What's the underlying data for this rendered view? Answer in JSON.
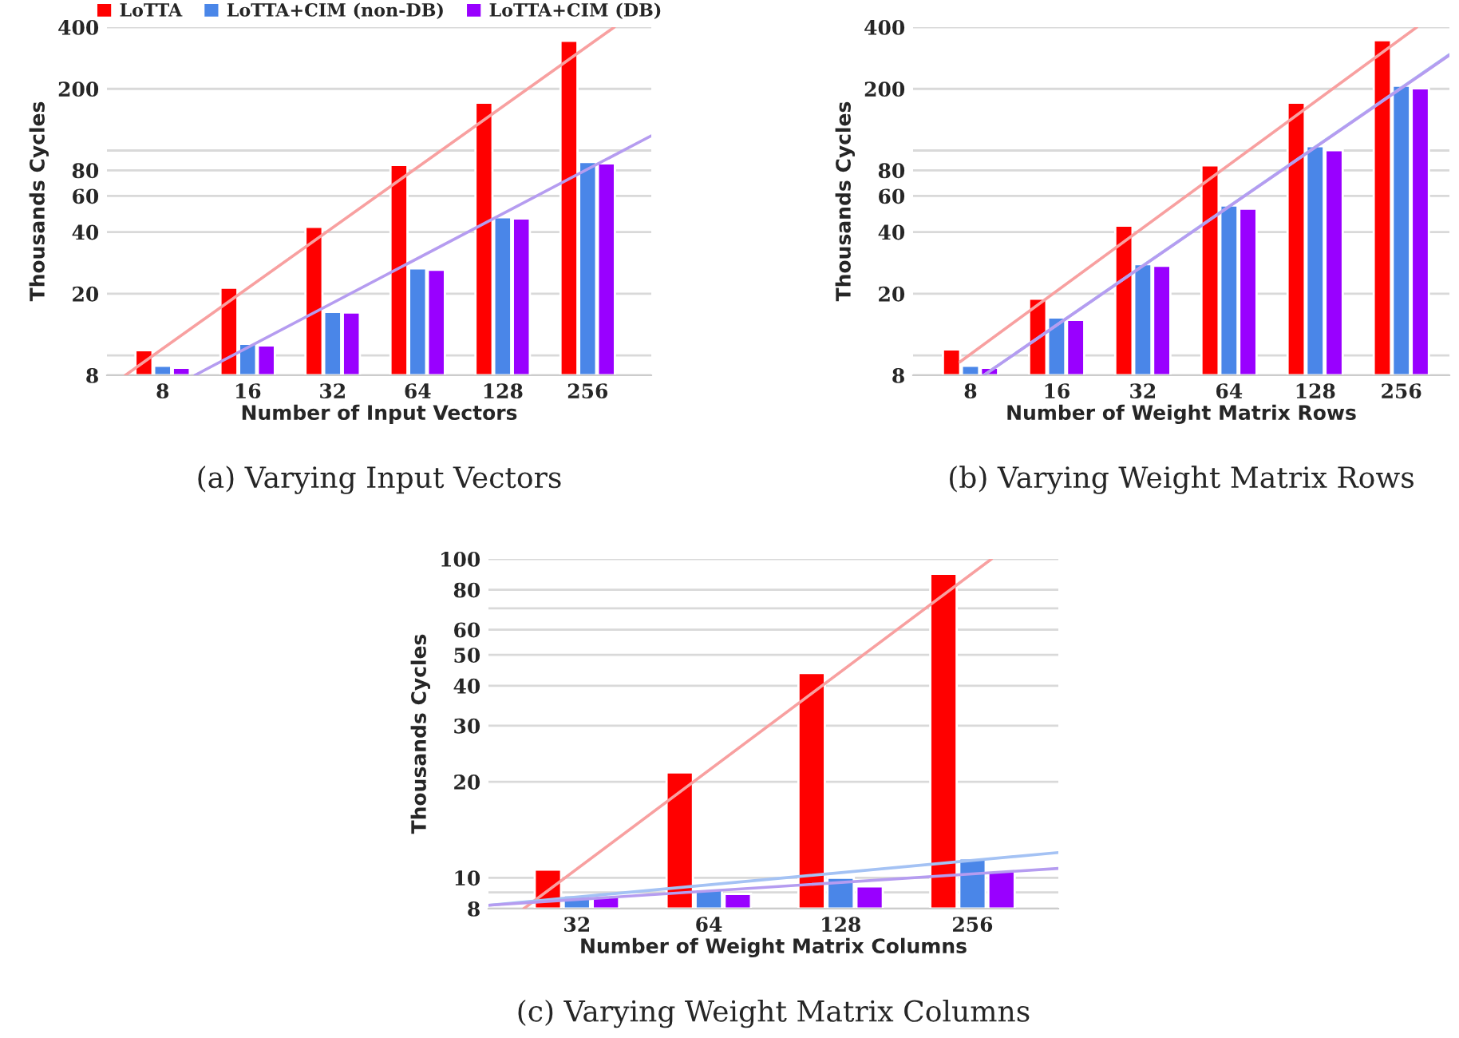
{
  "chart_data": [
    {
      "type": "bar",
      "xlabel": "Number of Input Vectors",
      "ylabel": "Thousands Cycles",
      "log": "xy",
      "grid": "y",
      "legend": "top",
      "x": [
        8,
        16,
        32,
        64,
        128,
        256
      ],
      "xlim": [
        5.08,
        430
      ],
      "xticks": [
        8,
        16,
        32,
        64,
        128,
        256
      ],
      "ylim": [
        8,
        400
      ],
      "yticks": [
        8,
        {
          "value": 10,
          "label": null
        },
        20,
        40,
        60,
        80,
        {
          "value": 100,
          "label": null
        },
        200,
        400
      ],
      "annotations": [
        "(a) Varying Input Vectors"
      ],
      "series": [
        {
          "name": "LoTTA",
          "color": "#ff0000",
          "values": [
            10.6,
            21.4,
            42.4,
            85,
            171,
            343
          ]
        },
        {
          "name": "LoTTA+CIM (non-DB)",
          "color": "#4a86e8",
          "values": [
            8.9,
            11.4,
            16.3,
            26.6,
            47.2,
            88
          ]
        },
        {
          "name": "LoTTA+CIM (DB)",
          "color": "#9900ff",
          "values": [
            8.7,
            11.2,
            16.2,
            26.2,
            46.6,
            86.6
          ]
        },
        {
          "type": "line",
          "color": "#f8a0a0",
          "x": [
            5.9,
            318
          ],
          "values": [
            8,
            400
          ]
        },
        {
          "type": "line",
          "color": "#b59cf0",
          "x": [
            10.4,
            430
          ],
          "values": [
            8,
            118
          ]
        }
      ]
    },
    {
      "type": "bar",
      "xlabel": "Number of Weight Matrix Rows",
      "ylabel": "Thousands Cycles",
      "log": "xy",
      "grid": "y",
      "x": [
        8,
        16,
        32,
        64,
        128,
        256
      ],
      "xlim": [
        5.04,
        377
      ],
      "xticks": [
        8,
        16,
        32,
        64,
        128,
        256
      ],
      "ylim": [
        8,
        400
      ],
      "yticks": [
        8,
        {
          "value": 10,
          "label": null
        },
        20,
        40,
        60,
        80,
        {
          "value": 100,
          "label": null
        },
        200,
        400
      ],
      "annotations": [
        "(b) Varying Weight Matrix Rows"
      ],
      "series": [
        {
          "color": "#ff0000",
          "values": [
            10.7,
            18.9,
            43,
            84.6,
            171,
            345
          ]
        },
        {
          "color": "#4a86e8",
          "values": [
            8.9,
            15.3,
            27.9,
            53.9,
            105,
            207
          ]
        },
        {
          "color": "#9900ff",
          "values": [
            8.7,
            14.9,
            27.4,
            52,
            100.4,
            201
          ]
        },
        {
          "type": "line",
          "color": "#f8a0a0",
          "x": [
            7.35,
            290
          ],
          "values": [
            9.3,
            400
          ]
        },
        {
          "type": "line",
          "color": "#a4c2f4",
          "x": [
            8.9,
            377
          ],
          "values": [
            8,
            294
          ]
        },
        {
          "type": "line",
          "color": "#b59cf0",
          "x": [
            8.9,
            377
          ],
          "values": [
            8,
            292
          ]
        }
      ]
    },
    {
      "type": "bar",
      "xlabel": "Number of Weight Matrix Columns",
      "ylabel": "Thousands Cycles",
      "log": "xy",
      "grid": "y",
      "x": [
        32,
        64,
        128,
        256
      ],
      "xlim": [
        20.1,
        402
      ],
      "xticks": [
        32,
        64,
        128,
        256
      ],
      "ylim": [
        8,
        100
      ],
      "yticks": [
        8,
        {
          "value": 9,
          "label": null
        },
        10,
        20,
        30,
        40,
        50,
        60,
        {
          "value": 70,
          "label": null
        },
        80,
        100
      ],
      "annotations": [
        "(c) Varying Weight Matrix Columns"
      ],
      "series": [
        {
          "color": "#ff0000",
          "values": [
            10.6,
            21.4,
            43.9,
            89.8
          ]
        },
        {
          "color": "#4a86e8",
          "values": [
            8.8,
            9.2,
            10.0,
            11.5
          ]
        },
        {
          "color": "#9900ff",
          "values": [
            8.7,
            8.9,
            9.4,
            10.5
          ]
        },
        {
          "type": "line",
          "color": "#f8a0a0",
          "x": [
            24.2,
            283
          ],
          "values": [
            8,
            100
          ]
        },
        {
          "type": "line",
          "color": "#a4c2f4",
          "x": [
            20.1,
            402
          ],
          "values": [
            8.2,
            12.0
          ]
        },
        {
          "type": "line",
          "color": "#b59cf0",
          "x": [
            20.1,
            402
          ],
          "values": [
            8.2,
            10.7
          ]
        }
      ]
    }
  ]
}
